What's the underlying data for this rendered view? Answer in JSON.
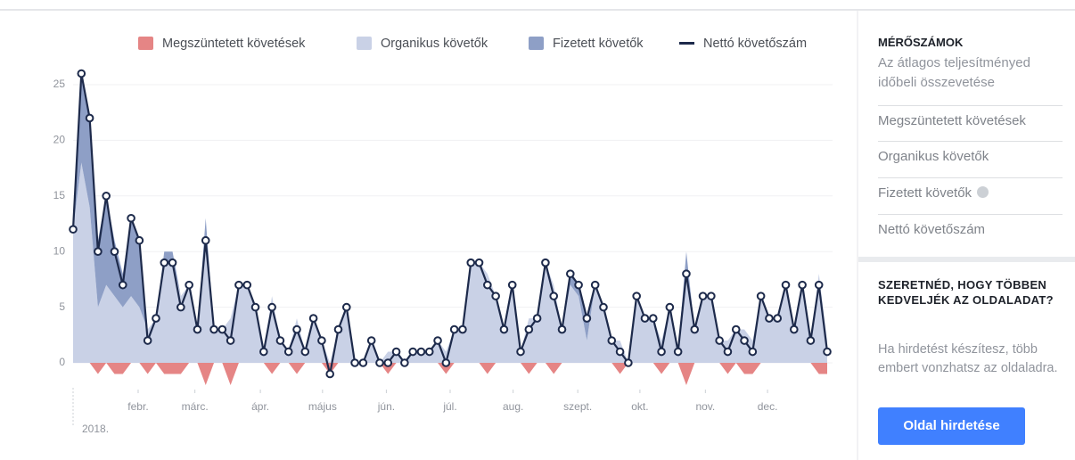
{
  "chart_data": {
    "type": "line",
    "series": [
      {
        "name": "Megszüntetett követések",
        "color": "#e58585",
        "kind": "negative-area",
        "values": [
          0,
          0,
          0,
          -1,
          0,
          -1,
          -1,
          0,
          0,
          -1,
          0,
          -1,
          -1,
          -1,
          0,
          0,
          -2,
          0,
          0,
          -2,
          0,
          0,
          0,
          0,
          -1,
          0,
          0,
          -1,
          0,
          0,
          0,
          -1,
          0,
          0,
          0,
          0,
          0,
          0,
          -1,
          0,
          0,
          0,
          0,
          0,
          0,
          -1,
          0,
          0,
          0,
          0,
          -1,
          0,
          0,
          0,
          0,
          -1,
          0,
          0,
          -1,
          0,
          0,
          0,
          0,
          0,
          0,
          0,
          -1,
          0,
          0,
          0,
          0,
          -1,
          0,
          0,
          -2,
          0,
          0,
          0,
          0,
          -1,
          0,
          -1,
          -1,
          0,
          0,
          0,
          0,
          0,
          0,
          0,
          -1,
          -1
        ]
      },
      {
        "name": "Organikus követők",
        "color": "#c9d1e6",
        "kind": "area",
        "values": [
          12,
          18,
          14,
          5,
          7,
          6,
          5,
          6,
          5,
          3,
          4,
          9,
          9,
          6,
          7,
          3,
          11,
          3,
          3,
          4,
          7,
          7,
          5,
          1,
          6,
          2,
          1,
          4,
          1,
          4,
          2,
          0,
          3,
          5,
          0,
          0,
          2,
          0,
          1,
          1,
          0,
          1,
          1,
          1,
          2,
          1,
          3,
          3,
          9,
          9,
          8,
          6,
          3,
          7,
          1,
          4,
          4,
          9,
          7,
          3,
          7,
          6,
          2,
          7,
          5,
          2,
          2,
          0,
          6,
          4,
          4,
          2,
          5,
          1,
          8,
          3,
          6,
          6,
          2,
          2,
          3,
          3,
          2,
          6,
          4,
          4,
          7,
          3,
          7,
          2,
          8,
          2
        ]
      },
      {
        "name": "Fizetett követők",
        "color": "#8e9fc6",
        "kind": "stacked-area",
        "values": [
          0,
          8,
          8,
          6,
          8,
          5,
          3,
          7,
          6,
          0,
          0,
          1,
          1,
          0,
          0,
          0,
          2,
          0,
          0,
          0,
          0,
          0,
          0,
          0,
          0,
          0,
          0,
          0,
          0,
          0,
          0,
          0,
          0,
          0,
          0,
          0,
          0,
          0,
          0,
          0,
          0,
          0,
          0,
          0,
          0,
          0,
          0,
          0,
          0,
          0,
          0,
          0,
          0,
          0,
          0,
          0,
          0,
          0,
          0,
          0,
          1,
          1,
          2,
          0,
          0,
          0,
          0,
          0,
          0,
          0,
          0,
          0,
          0,
          0,
          2,
          0,
          0,
          0,
          0,
          0,
          0,
          0,
          0,
          0,
          0,
          0,
          0,
          0,
          0,
          0,
          0,
          0
        ]
      },
      {
        "name": "Nettó követőszám",
        "color": "#1d2a4b",
        "kind": "line",
        "values": [
          12,
          26,
          22,
          10,
          15,
          10,
          7,
          13,
          11,
          2,
          4,
          9,
          9,
          5,
          7,
          3,
          11,
          3,
          3,
          2,
          7,
          7,
          5,
          1,
          5,
          2,
          1,
          3,
          1,
          4,
          2,
          -1,
          3,
          5,
          0,
          0,
          2,
          0,
          0,
          1,
          0,
          1,
          1,
          1,
          2,
          0,
          3,
          3,
          9,
          9,
          7,
          6,
          3,
          7,
          1,
          3,
          4,
          9,
          6,
          3,
          8,
          7,
          4,
          7,
          5,
          2,
          1,
          0,
          6,
          4,
          4,
          1,
          5,
          1,
          8,
          3,
          6,
          6,
          2,
          1,
          3,
          2,
          1,
          6,
          4,
          4,
          7,
          3,
          7,
          2,
          7,
          1
        ]
      }
    ],
    "xlim": [
      0,
      91
    ],
    "xticks": [
      {
        "value": 7.85,
        "label": "febr."
      },
      {
        "value": 14.7,
        "label": "márc."
      },
      {
        "value": 22.6,
        "label": "ápr."
      },
      {
        "value": 30.1,
        "label": "május"
      },
      {
        "value": 37.8,
        "label": "jún."
      },
      {
        "value": 45.5,
        "label": "júl."
      },
      {
        "value": 53.1,
        "label": "aug."
      },
      {
        "value": 60.9,
        "label": "szept."
      },
      {
        "value": 68.4,
        "label": "okt."
      },
      {
        "value": 76.3,
        "label": "nov."
      },
      {
        "value": 83.8,
        "label": "dec."
      }
    ],
    "year_label": "2018.",
    "ylim": [
      0,
      25
    ],
    "yticks": [
      0,
      5,
      10,
      15,
      20,
      25
    ],
    "grid": true
  },
  "sidebar": {
    "metrics_title": "MÉRŐSZÁMOK",
    "metrics_subtitle": "Az átlagos teljesítményed időbeli összevetése",
    "metrics": [
      "Megszüntetett követések",
      "Organikus követők",
      "Fizetett követők",
      "Nettó követőszám"
    ],
    "promo": {
      "title": "SZERETNÉD, HOGY TÖBBEN KEDVELJÉK AZ OLDALADAT?",
      "text": "Ha hirdetést készítesz, több embert vonzhatsz az oldaladra.",
      "button": "Oldal hirdetése"
    }
  }
}
